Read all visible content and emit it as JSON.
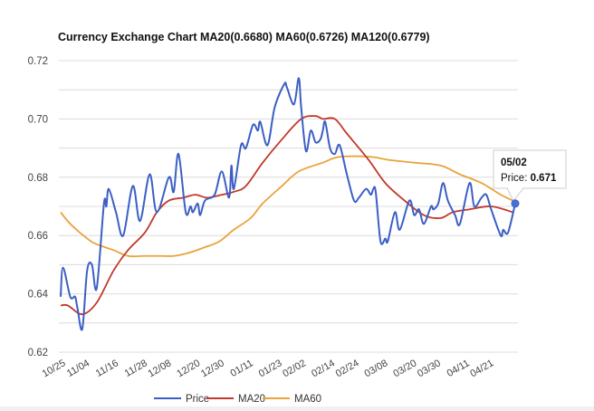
{
  "chart_data": {
    "type": "line",
    "title": "Currency Exchange Chart MA20(0.6680) MA60(0.6726) MA120(0.6779)",
    "xlabel": "",
    "ylabel": "",
    "ylim": [
      0.62,
      0.72
    ],
    "yticks": [
      "0.72",
      "0.70",
      "0.68",
      "0.66",
      "0.64",
      "0.62"
    ],
    "ytick_values": [
      0.72,
      0.7,
      0.68,
      0.66,
      0.64,
      0.62
    ],
    "grid_step": 0.01,
    "grid": true,
    "xticks": [
      "10/25",
      "11/04",
      "11/16",
      "11/28",
      "12/08",
      "12/20",
      "12/30",
      "01/11",
      "01/23",
      "02/02",
      "02/14",
      "02/24",
      "03/08",
      "03/20",
      "03/30",
      "04/11",
      "04/21"
    ],
    "legend_position": "bottom",
    "series": [
      {
        "name": "Price",
        "color": "#3b5fc4",
        "points": [
          [
            "10/25",
            0.639
          ],
          [
            "10/26",
            0.649
          ],
          [
            "10/29",
            0.639
          ],
          [
            "10/31",
            0.639
          ],
          [
            "11/01",
            0.635
          ],
          [
            "11/03",
            0.628
          ],
          [
            "11/05",
            0.648
          ],
          [
            "11/07",
            0.65
          ],
          [
            "11/09",
            0.642
          ],
          [
            "11/12",
            0.671
          ],
          [
            "11/13",
            0.67
          ],
          [
            "11/14",
            0.676
          ],
          [
            "11/17",
            0.668
          ],
          [
            "11/20",
            0.66
          ],
          [
            "11/24",
            0.677
          ],
          [
            "11/27",
            0.665
          ],
          [
            "12/01",
            0.681
          ],
          [
            "12/04",
            0.668
          ],
          [
            "12/09",
            0.68
          ],
          [
            "12/11",
            0.675
          ],
          [
            "12/13",
            0.688
          ],
          [
            "12/16",
            0.668
          ],
          [
            "12/18",
            0.67
          ],
          [
            "12/19",
            0.668
          ],
          [
            "12/21",
            0.671
          ],
          [
            "12/22",
            0.667
          ],
          [
            "12/24",
            0.672
          ],
          [
            "12/28",
            0.674
          ],
          [
            "12/31",
            0.682
          ],
          [
            "01/03",
            0.673
          ],
          [
            "01/04",
            0.684
          ],
          [
            "01/05",
            0.676
          ],
          [
            "01/08",
            0.691
          ],
          [
            "01/10",
            0.69
          ],
          [
            "01/13",
            0.698
          ],
          [
            "01/15",
            0.696
          ],
          [
            "01/16",
            0.699
          ],
          [
            "01/19",
            0.691
          ],
          [
            "01/22",
            0.704
          ],
          [
            "01/26",
            0.712
          ],
          [
            "01/27",
            0.711
          ],
          [
            "01/30",
            0.705
          ],
          [
            "02/01",
            0.714
          ],
          [
            "02/02",
            0.704
          ],
          [
            "02/04",
            0.689
          ],
          [
            "02/06",
            0.696
          ],
          [
            "02/08",
            0.692
          ],
          [
            "02/10",
            0.693
          ],
          [
            "02/11",
            0.696
          ],
          [
            "02/12",
            0.699
          ],
          [
            "02/14",
            0.69
          ],
          [
            "02/16",
            0.688
          ],
          [
            "02/18",
            0.691
          ],
          [
            "02/21",
            0.681
          ],
          [
            "02/24",
            0.672
          ],
          [
            "02/26",
            0.673
          ],
          [
            "03/01",
            0.676
          ],
          [
            "03/03",
            0.674
          ],
          [
            "03/04",
            0.676
          ],
          [
            "03/05",
            0.675
          ],
          [
            "03/07",
            0.658
          ],
          [
            "03/09",
            0.659
          ],
          [
            "03/10",
            0.658
          ],
          [
            "03/13",
            0.668
          ],
          [
            "03/15",
            0.662
          ],
          [
            "03/19",
            0.672
          ],
          [
            "03/21",
            0.667
          ],
          [
            "03/23",
            0.669
          ],
          [
            "03/25",
            0.664
          ],
          [
            "03/28",
            0.67
          ],
          [
            "03/29",
            0.669
          ],
          [
            "03/31",
            0.671
          ],
          [
            "04/02",
            0.678
          ],
          [
            "04/04",
            0.672
          ],
          [
            "04/07",
            0.667
          ],
          [
            "04/09",
            0.664
          ],
          [
            "04/13",
            0.678
          ],
          [
            "04/15",
            0.67
          ],
          [
            "04/18",
            0.673
          ],
          [
            "04/20",
            0.674
          ],
          [
            "04/22",
            0.669
          ],
          [
            "04/26",
            0.66
          ],
          [
            "04/27",
            0.662
          ],
          [
            "04/29",
            0.661
          ],
          [
            "05/02",
            0.671
          ]
        ]
      },
      {
        "name": "MA20",
        "color": "#c0392b",
        "points": [
          [
            "10/25",
            0.636
          ],
          [
            "10/28",
            0.636
          ],
          [
            "11/03",
            0.633
          ],
          [
            "11/09",
            0.637
          ],
          [
            "11/16",
            0.648
          ],
          [
            "11/22",
            0.655
          ],
          [
            "11/29",
            0.661
          ],
          [
            "12/04",
            0.668
          ],
          [
            "12/09",
            0.672
          ],
          [
            "12/15",
            0.673
          ],
          [
            "12/20",
            0.674
          ],
          [
            "12/25",
            0.673
          ],
          [
            "12/31",
            0.674
          ],
          [
            "01/05",
            0.675
          ],
          [
            "01/10",
            0.677
          ],
          [
            "01/17",
            0.685
          ],
          [
            "01/25",
            0.693
          ],
          [
            "02/02",
            0.7
          ],
          [
            "02/08",
            0.701
          ],
          [
            "02/11",
            0.7
          ],
          [
            "02/16",
            0.7
          ],
          [
            "02/21",
            0.695
          ],
          [
            "03/02",
            0.686
          ],
          [
            "03/09",
            0.678
          ],
          [
            "03/17",
            0.672
          ],
          [
            "03/25",
            0.667
          ],
          [
            "04/01",
            0.666
          ],
          [
            "04/06",
            0.668
          ],
          [
            "04/13",
            0.669
          ],
          [
            "04/22",
            0.67
          ],
          [
            "05/01",
            0.668
          ]
        ]
      },
      {
        "name": "MA60",
        "color": "#e8a33a",
        "points": [
          [
            "10/25",
            0.668
          ],
          [
            "10/29",
            0.664
          ],
          [
            "11/05",
            0.659
          ],
          [
            "11/09",
            0.657
          ],
          [
            "11/16",
            0.655
          ],
          [
            "11/22",
            0.653
          ],
          [
            "11/29",
            0.653
          ],
          [
            "12/06",
            0.653
          ],
          [
            "12/11",
            0.653
          ],
          [
            "12/17",
            0.654
          ],
          [
            "12/24",
            0.656
          ],
          [
            "12/30",
            0.658
          ],
          [
            "01/05",
            0.662
          ],
          [
            "01/12",
            0.666
          ],
          [
            "01/17",
            0.671
          ],
          [
            "01/25",
            0.677
          ],
          [
            "02/01",
            0.682
          ],
          [
            "02/11",
            0.685
          ],
          [
            "02/18",
            0.687
          ],
          [
            "03/03",
            0.687
          ],
          [
            "03/10",
            0.686
          ],
          [
            "03/21",
            0.685
          ],
          [
            "04/01",
            0.684
          ],
          [
            "04/09",
            0.681
          ],
          [
            "04/18",
            0.678
          ],
          [
            "04/26",
            0.674
          ],
          [
            "05/01",
            0.672
          ]
        ]
      }
    ],
    "tooltip": {
      "date": "05/02",
      "label": "Price: ",
      "value": "0.671",
      "series": "Price",
      "point": [
        "05/02",
        0.671
      ]
    }
  }
}
